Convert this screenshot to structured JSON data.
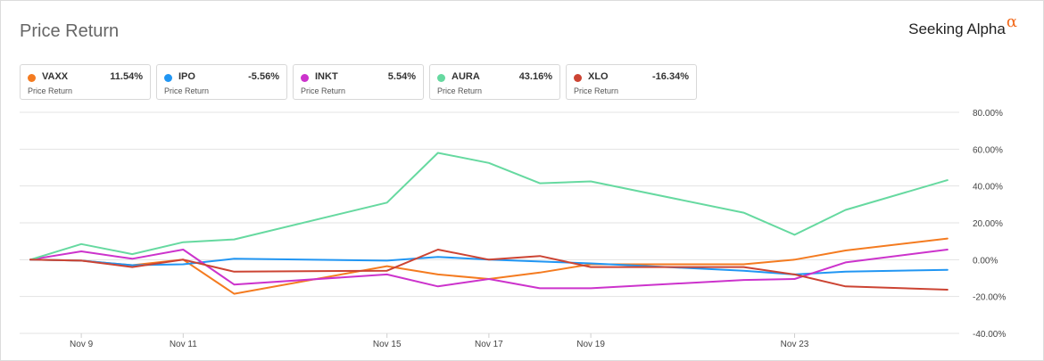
{
  "header": {
    "title": "Price Return",
    "brand": "Seeking Alpha",
    "brand_mark": "α"
  },
  "legend": [
    {
      "symbol": "VAXX",
      "value": "11.54%",
      "label": "Price Return",
      "color": "#f47b20"
    },
    {
      "symbol": "IPO",
      "value": "-5.56%",
      "label": "Price Return",
      "color": "#2196f3"
    },
    {
      "symbol": "INKT",
      "value": "5.54%",
      "label": "Price Return",
      "color": "#cc33cc"
    },
    {
      "symbol": "AURA",
      "value": "43.16%",
      "label": "Price Return",
      "color": "#66d9a0"
    },
    {
      "symbol": "XLO",
      "value": "-16.34%",
      "label": "Price Return",
      "color": "#cc4433"
    }
  ],
  "chart_data": {
    "type": "line",
    "title": "Price Return",
    "x": [
      "Nov 8",
      "Nov 9",
      "Nov 10",
      "Nov 11",
      "Nov 12",
      "Nov 15",
      "Nov 16",
      "Nov 17",
      "Nov 18",
      "Nov 19",
      "Nov 22",
      "Nov 23",
      "Nov 24",
      "Nov 26"
    ],
    "x_tick_labels": [
      "Nov 9",
      "Nov 11",
      "Nov 15",
      "Nov 17",
      "Nov 19",
      "Nov 23"
    ],
    "y_tick_labels": [
      "80.00%",
      "60.00%",
      "40.00%",
      "20.00%",
      "0.00%",
      "-20.00%",
      "-40.00%"
    ],
    "ylim": [
      -40,
      80
    ],
    "y_ticks": [
      80,
      60,
      40,
      20,
      0,
      -20,
      -40
    ],
    "grid": true,
    "series": [
      {
        "name": "VAXX",
        "color": "#f47b20",
        "values": [
          0,
          -0.5,
          -3,
          0,
          -18.5,
          -3.5,
          -8,
          -10.5,
          -7,
          -2.5,
          -2.5,
          0,
          5,
          11.5
        ]
      },
      {
        "name": "IPO",
        "color": "#2196f3",
        "values": [
          0,
          -0.5,
          -3,
          -2.5,
          0.5,
          -0.5,
          1.5,
          0,
          -1,
          -2,
          -6,
          -8,
          -6.5,
          -5.5
        ]
      },
      {
        "name": "INKT",
        "color": "#cc33cc",
        "values": [
          0,
          4.5,
          0.5,
          5.5,
          -13.5,
          -8,
          -14.5,
          -10.5,
          -15.5,
          -15.5,
          -11,
          -10.5,
          -1.5,
          5.5
        ]
      },
      {
        "name": "AURA",
        "color": "#66d9a0",
        "values": [
          0,
          8.5,
          3,
          9.5,
          11,
          31,
          58,
          52.5,
          41.5,
          42.5,
          25.5,
          13.5,
          27,
          43.2
        ]
      },
      {
        "name": "XLO",
        "color": "#cc4433",
        "values": [
          0,
          -0.5,
          -4,
          0,
          -6.5,
          -6,
          5.5,
          0,
          2,
          -4,
          -4,
          -8,
          -14.5,
          -16.3
        ]
      }
    ]
  }
}
